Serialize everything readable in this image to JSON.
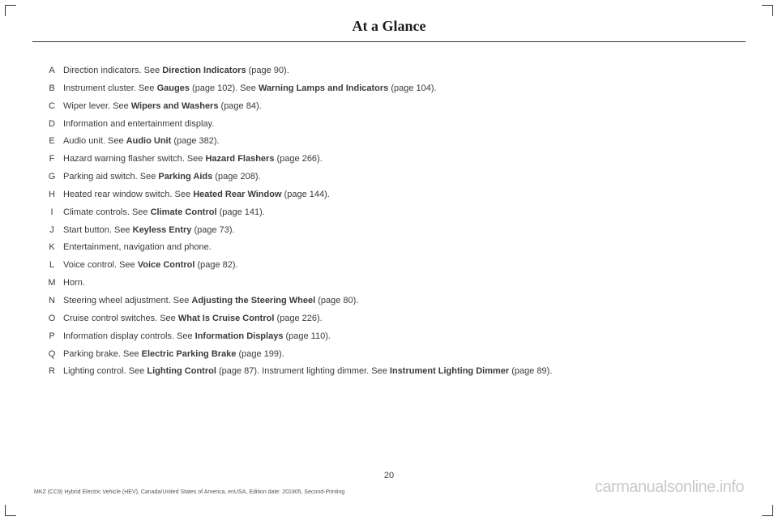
{
  "header": "At a Glance",
  "items": [
    {
      "letter": "A",
      "parts": [
        [
          "Direction indicators.  See ",
          false
        ],
        [
          "Direction Indicators",
          true
        ],
        [
          " (page 90).",
          false
        ]
      ]
    },
    {
      "letter": "B",
      "parts": [
        [
          "Instrument cluster. See ",
          false
        ],
        [
          "Gauges",
          true
        ],
        [
          " (page 102).  See ",
          false
        ],
        [
          "Warning Lamps and Indicators",
          true
        ],
        [
          " (page 104).",
          false
        ]
      ]
    },
    {
      "letter": "C",
      "parts": [
        [
          "Wiper lever.  See ",
          false
        ],
        [
          "Wipers and Washers",
          true
        ],
        [
          " (page 84).",
          false
        ]
      ]
    },
    {
      "letter": "D",
      "parts": [
        [
          "Information and entertainment display.",
          false
        ]
      ]
    },
    {
      "letter": "E",
      "parts": [
        [
          "Audio unit.  See ",
          false
        ],
        [
          "Audio Unit",
          true
        ],
        [
          " (page 382).",
          false
        ]
      ]
    },
    {
      "letter": "F",
      "parts": [
        [
          "Hazard warning flasher switch.  See ",
          false
        ],
        [
          "Hazard Flashers",
          true
        ],
        [
          " (page 266).",
          false
        ]
      ]
    },
    {
      "letter": "G",
      "parts": [
        [
          "Parking aid switch.  See ",
          false
        ],
        [
          "Parking Aids",
          true
        ],
        [
          " (page 208).",
          false
        ]
      ]
    },
    {
      "letter": "H",
      "parts": [
        [
          "Heated rear window switch.  See ",
          false
        ],
        [
          "Heated Rear Window",
          true
        ],
        [
          " (page 144).",
          false
        ]
      ]
    },
    {
      "letter": "I",
      "parts": [
        [
          "Climate controls.  See ",
          false
        ],
        [
          "Climate Control",
          true
        ],
        [
          " (page 141).",
          false
        ]
      ]
    },
    {
      "letter": "J",
      "parts": [
        [
          "Start button.  See ",
          false
        ],
        [
          "Keyless Entry",
          true
        ],
        [
          " (page 73).",
          false
        ]
      ]
    },
    {
      "letter": "K",
      "parts": [
        [
          "Entertainment, navigation and phone.",
          false
        ]
      ]
    },
    {
      "letter": "L",
      "parts": [
        [
          "Voice control.  See ",
          false
        ],
        [
          "Voice Control",
          true
        ],
        [
          " (page 82).",
          false
        ]
      ]
    },
    {
      "letter": "M",
      "parts": [
        [
          "Horn.",
          false
        ]
      ]
    },
    {
      "letter": "N",
      "parts": [
        [
          "Steering wheel adjustment.  See ",
          false
        ],
        [
          "Adjusting the Steering Wheel",
          true
        ],
        [
          " (page 80).",
          false
        ]
      ]
    },
    {
      "letter": "O",
      "parts": [
        [
          "Cruise control switches.  See ",
          false
        ],
        [
          "What Is Cruise Control",
          true
        ],
        [
          " (page 226).",
          false
        ]
      ]
    },
    {
      "letter": "P",
      "parts": [
        [
          "Information display controls.  See ",
          false
        ],
        [
          "Information Displays",
          true
        ],
        [
          " (page 110).",
          false
        ]
      ]
    },
    {
      "letter": "Q",
      "parts": [
        [
          "Parking brake. See ",
          false
        ],
        [
          "Electric Parking Brake",
          true
        ],
        [
          " (page 199).",
          false
        ]
      ]
    },
    {
      "letter": "R",
      "parts": [
        [
          "Lighting control.  See ",
          false
        ],
        [
          "Lighting Control",
          true
        ],
        [
          " (page 87).  Instrument lighting dimmer.  See ",
          false
        ],
        [
          "Instrument Lighting Dimmer",
          true
        ],
        [
          " (page 89).",
          false
        ]
      ]
    }
  ],
  "page_number": "20",
  "footer_left": "MKZ (CC9) Hybrid Electric Vehicle (HEV), Canada/United States of America, enUSA, Edition date: 201905, Second-Printing",
  "footer_right": "carmanualsonline.info"
}
